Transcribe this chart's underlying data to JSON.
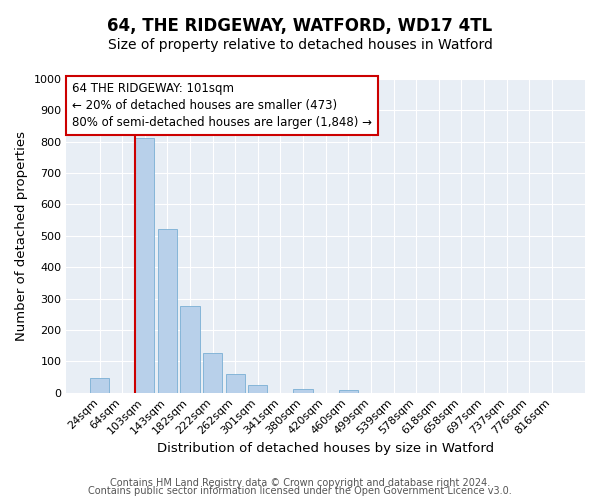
{
  "title": "64, THE RIDGEWAY, WATFORD, WD17 4TL",
  "subtitle": "Size of property relative to detached houses in Watford",
  "xlabel": "Distribution of detached houses by size in Watford",
  "ylabel": "Number of detached properties",
  "bar_labels": [
    "24sqm",
    "64sqm",
    "103sqm",
    "143sqm",
    "182sqm",
    "222sqm",
    "262sqm",
    "301sqm",
    "341sqm",
    "380sqm",
    "420sqm",
    "460sqm",
    "499sqm",
    "539sqm",
    "578sqm",
    "618sqm",
    "658sqm",
    "697sqm",
    "737sqm",
    "776sqm",
    "816sqm"
  ],
  "bar_values": [
    46,
    0,
    812,
    521,
    275,
    125,
    59,
    25,
    0,
    12,
    0,
    8,
    0,
    0,
    0,
    0,
    0,
    0,
    0,
    0,
    0
  ],
  "bar_color": "#b8d0ea",
  "bar_edge_color": "#7aafd4",
  "vline_color": "#cc0000",
  "vline_index": 2,
  "ylim": [
    0,
    1000
  ],
  "yticks": [
    0,
    100,
    200,
    300,
    400,
    500,
    600,
    700,
    800,
    900,
    1000
  ],
  "annotation_title": "64 THE RIDGEWAY: 101sqm",
  "annotation_line1": "← 20% of detached houses are smaller (473)",
  "annotation_line2": "80% of semi-detached houses are larger (1,848) →",
  "annotation_box_color": "#ffffff",
  "annotation_box_edge": "#cc0000",
  "footer1": "Contains HM Land Registry data © Crown copyright and database right 2024.",
  "footer2": "Contains public sector information licensed under the Open Government Licence v3.0.",
  "bg_color": "#ffffff",
  "plot_bg_color": "#e8eef5",
  "grid_color": "#ffffff",
  "title_fontsize": 12,
  "subtitle_fontsize": 10,
  "axis_label_fontsize": 9.5,
  "tick_fontsize": 8,
  "annotation_fontsize": 8.5,
  "footer_fontsize": 7
}
